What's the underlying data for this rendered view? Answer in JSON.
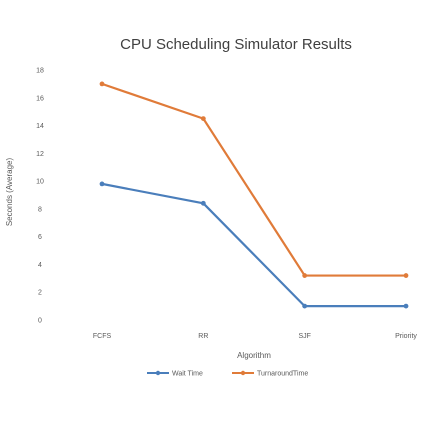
{
  "chart_data": {
    "type": "line",
    "title": "CPU Scheduling Simulator Results",
    "xlabel": "Algorithm",
    "ylabel": "Seconds (Average)",
    "categories": [
      "FCFS",
      "RR",
      "SJF",
      "Priority"
    ],
    "ylim": [
      0,
      18
    ],
    "yticks": [
      0,
      2,
      4,
      6,
      8,
      10,
      12,
      14,
      16,
      18
    ],
    "grid": false,
    "legend": "bottom",
    "series": [
      {
        "name": "Wait Time",
        "values": [
          9.8,
          8.4,
          1.0,
          1.0
        ],
        "color": "#4a7ebb"
      },
      {
        "name": "TurnaroundTime",
        "values": [
          17.0,
          14.5,
          3.2,
          3.2
        ],
        "color": "#e07b39"
      }
    ]
  }
}
